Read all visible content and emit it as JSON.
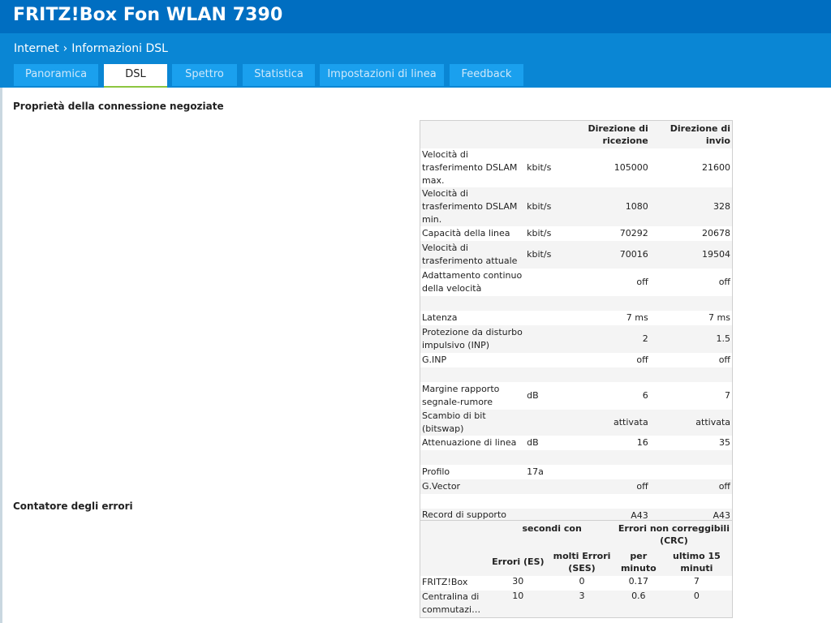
{
  "header": {
    "title": "FRITZ!Box Fon WLAN 7390"
  },
  "breadcrumb": {
    "parent": "Internet",
    "separator": "›",
    "current": "Informazioni DSL"
  },
  "tabs": [
    {
      "label": "Panoramica",
      "active": false
    },
    {
      "label": "DSL",
      "active": true
    },
    {
      "label": "Spettro",
      "active": false
    },
    {
      "label": "Statistica",
      "active": false
    },
    {
      "label": "Impostazioni di linea",
      "active": false
    },
    {
      "label": "Feedback",
      "active": false
    }
  ],
  "colors": {
    "header": "#006ec1",
    "subheader": "#0a86d4",
    "tab": "#1aa0ee",
    "tab_active_underline": "#8cc63f"
  },
  "connection": {
    "title": "Proprietà della connessione negoziate",
    "headers": [
      "",
      "",
      "Direzione di ricezione",
      "Direzione di invio"
    ],
    "rows": [
      [
        "Velocità di trasferimento DSLAM max.",
        "kbit/s",
        "105000",
        "21600"
      ],
      [
        "Velocità di trasferimento DSLAM min.",
        "kbit/s",
        "1080",
        "328"
      ],
      [
        "Capacità della linea",
        "kbit/s",
        "70292",
        "20678"
      ],
      [
        "Velocità di trasferimento attuale",
        "kbit/s",
        "70016",
        "19504"
      ],
      [
        "Adattamento continuo della velocità",
        "",
        "off",
        "off"
      ],
      [
        "",
        "",
        "",
        ""
      ],
      [
        "Latenza",
        "",
        "7 ms",
        "7 ms"
      ],
      [
        "Protezione da disturbo impulsivo (INP)",
        "",
        "2",
        "1.5"
      ],
      [
        "G.INP",
        "",
        "off",
        "off"
      ],
      [
        "",
        "",
        "",
        ""
      ],
      [
        "Margine rapporto segnale-rumore",
        "dB",
        "6",
        "7"
      ],
      [
        "Scambio di bit (bitswap)",
        "",
        "attivata",
        "attivata"
      ],
      [
        "Attenuazione di linea",
        "dB",
        "16",
        "35"
      ],
      [
        "",
        "",
        "",
        ""
      ],
      [
        "Profilo",
        "17a",
        "",
        ""
      ],
      [
        "G.Vector",
        "",
        "off",
        "off"
      ],
      [
        "",
        "",
        "",
        ""
      ],
      [
        "Record di supporto",
        "",
        "A43",
        "A43"
      ]
    ]
  },
  "errors": {
    "title": "Contatore degli errori",
    "group_headers": [
      "",
      "secondi con",
      "Errori non correggibili (CRC)"
    ],
    "headers": [
      "",
      "Errori (ES)",
      "molti Errori (SES)",
      "per minuto",
      "ultimo 15 minuti"
    ],
    "rows": [
      [
        "FRITZ!Box",
        "30",
        "0",
        "0.17",
        "7"
      ],
      [
        "Centralina di commutazi…",
        "10",
        "3",
        "0.6",
        "0"
      ]
    ]
  }
}
